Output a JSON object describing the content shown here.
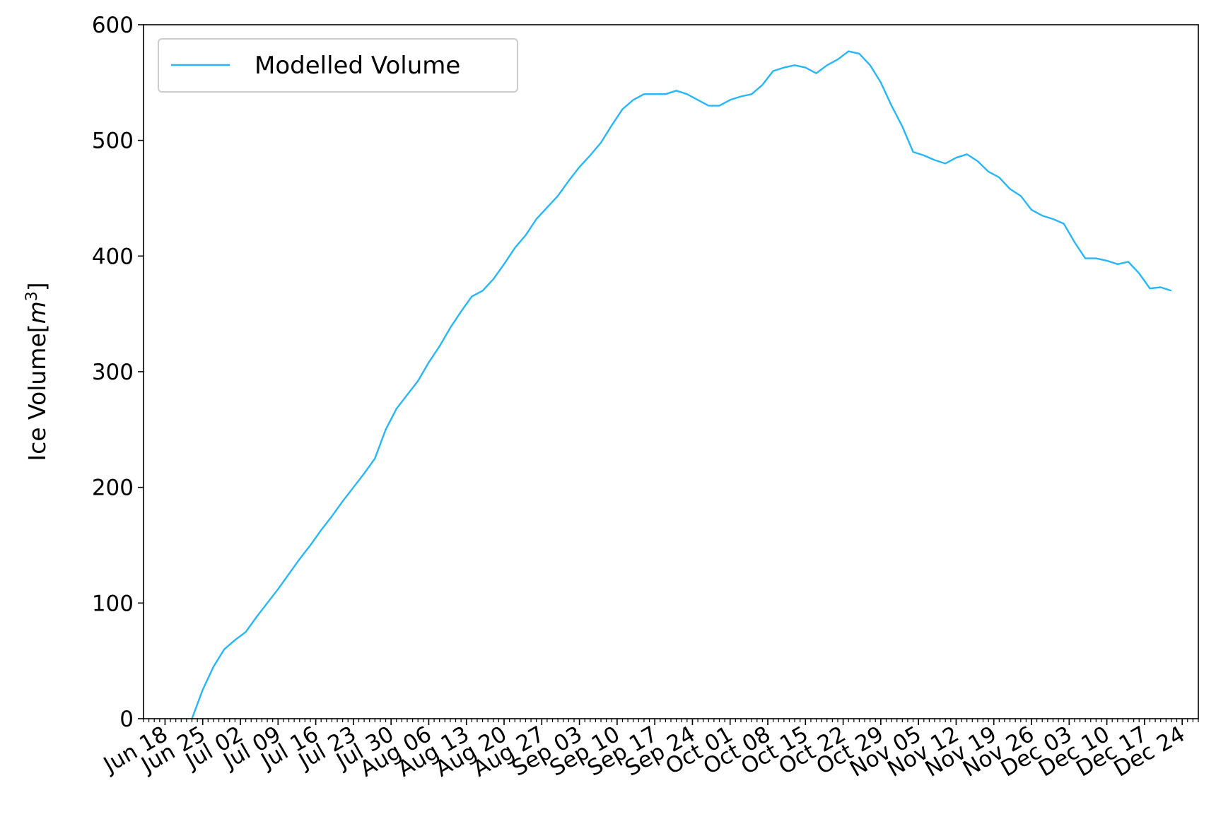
{
  "chart_data": {
    "type": "line",
    "title": "",
    "xlabel": "",
    "ylabel": "Ice Volume[m³]",
    "ylabel_parts": {
      "base": "Ice Volume[",
      "var": "m",
      "sup": "3",
      "close": "]"
    },
    "ylim": [
      0,
      600
    ],
    "xlim": [
      "2023-06-14",
      "2023-12-27"
    ],
    "grid": false,
    "legend_position": "top-left",
    "x_date_format": "Mon DD",
    "x_tick_labels": [
      "Jun 18",
      "Jun 25",
      "Jul 02",
      "Jul 09",
      "Jul 16",
      "Jul 23",
      "Jul 30",
      "Aug 06",
      "Aug 13",
      "Aug 20",
      "Aug 27",
      "Sep 03",
      "Sep 10",
      "Sep 17",
      "Sep 24",
      "Oct 01",
      "Oct 08",
      "Oct 15",
      "Oct 22",
      "Oct 29",
      "Nov 05",
      "Nov 12",
      "Nov 19",
      "Nov 26",
      "Dec 03",
      "Dec 10",
      "Dec 17",
      "Dec 24"
    ],
    "y_ticks": [
      0,
      100,
      200,
      300,
      400,
      500,
      600
    ],
    "series": [
      {
        "name": "Modelled Volume",
        "color": "#29b6f6",
        "points": [
          [
            "2023-06-23",
            0
          ],
          [
            "2023-06-25",
            25
          ],
          [
            "2023-06-27",
            45
          ],
          [
            "2023-06-29",
            60
          ],
          [
            "2023-07-01",
            68
          ],
          [
            "2023-07-03",
            75
          ],
          [
            "2023-07-05",
            88
          ],
          [
            "2023-07-07",
            100
          ],
          [
            "2023-07-09",
            112
          ],
          [
            "2023-07-11",
            125
          ],
          [
            "2023-07-13",
            138
          ],
          [
            "2023-07-15",
            150
          ],
          [
            "2023-07-17",
            163
          ],
          [
            "2023-07-19",
            175
          ],
          [
            "2023-07-21",
            188
          ],
          [
            "2023-07-23",
            200
          ],
          [
            "2023-07-25",
            212
          ],
          [
            "2023-07-27",
            225
          ],
          [
            "2023-07-29",
            250
          ],
          [
            "2023-07-31",
            268
          ],
          [
            "2023-08-02",
            280
          ],
          [
            "2023-08-04",
            292
          ],
          [
            "2023-08-06",
            308
          ],
          [
            "2023-08-08",
            322
          ],
          [
            "2023-08-10",
            338
          ],
          [
            "2023-08-12",
            352
          ],
          [
            "2023-08-14",
            365
          ],
          [
            "2023-08-16",
            370
          ],
          [
            "2023-08-18",
            380
          ],
          [
            "2023-08-20",
            393
          ],
          [
            "2023-08-22",
            407
          ],
          [
            "2023-08-24",
            418
          ],
          [
            "2023-08-26",
            432
          ],
          [
            "2023-08-28",
            442
          ],
          [
            "2023-08-30",
            452
          ],
          [
            "2023-09-01",
            465
          ],
          [
            "2023-09-03",
            477
          ],
          [
            "2023-09-05",
            487
          ],
          [
            "2023-09-07",
            498
          ],
          [
            "2023-09-09",
            513
          ],
          [
            "2023-09-11",
            527
          ],
          [
            "2023-09-13",
            535
          ],
          [
            "2023-09-15",
            540
          ],
          [
            "2023-09-17",
            540
          ],
          [
            "2023-09-19",
            540
          ],
          [
            "2023-09-21",
            543
          ],
          [
            "2023-09-23",
            540
          ],
          [
            "2023-09-25",
            535
          ],
          [
            "2023-09-27",
            530
          ],
          [
            "2023-09-29",
            530
          ],
          [
            "2023-10-01",
            535
          ],
          [
            "2023-10-03",
            538
          ],
          [
            "2023-10-05",
            540
          ],
          [
            "2023-10-07",
            548
          ],
          [
            "2023-10-09",
            560
          ],
          [
            "2023-10-11",
            563
          ],
          [
            "2023-10-13",
            565
          ],
          [
            "2023-10-15",
            563
          ],
          [
            "2023-10-17",
            558
          ],
          [
            "2023-10-19",
            565
          ],
          [
            "2023-10-21",
            570
          ],
          [
            "2023-10-23",
            577
          ],
          [
            "2023-10-25",
            575
          ],
          [
            "2023-10-27",
            565
          ],
          [
            "2023-10-29",
            550
          ],
          [
            "2023-10-31",
            530
          ],
          [
            "2023-11-02",
            512
          ],
          [
            "2023-11-04",
            490
          ],
          [
            "2023-11-06",
            487
          ],
          [
            "2023-11-08",
            483
          ],
          [
            "2023-11-10",
            480
          ],
          [
            "2023-11-12",
            485
          ],
          [
            "2023-11-14",
            488
          ],
          [
            "2023-11-16",
            482
          ],
          [
            "2023-11-18",
            473
          ],
          [
            "2023-11-20",
            468
          ],
          [
            "2023-11-22",
            458
          ],
          [
            "2023-11-24",
            452
          ],
          [
            "2023-11-26",
            440
          ],
          [
            "2023-11-28",
            435
          ],
          [
            "2023-11-30",
            432
          ],
          [
            "2023-12-02",
            428
          ],
          [
            "2023-12-04",
            412
          ],
          [
            "2023-12-06",
            398
          ],
          [
            "2023-12-08",
            398
          ],
          [
            "2023-12-10",
            396
          ],
          [
            "2023-12-12",
            393
          ],
          [
            "2023-12-14",
            395
          ],
          [
            "2023-12-16",
            385
          ],
          [
            "2023-12-18",
            372
          ],
          [
            "2023-12-20",
            373
          ],
          [
            "2023-12-22",
            370
          ]
        ]
      }
    ]
  }
}
